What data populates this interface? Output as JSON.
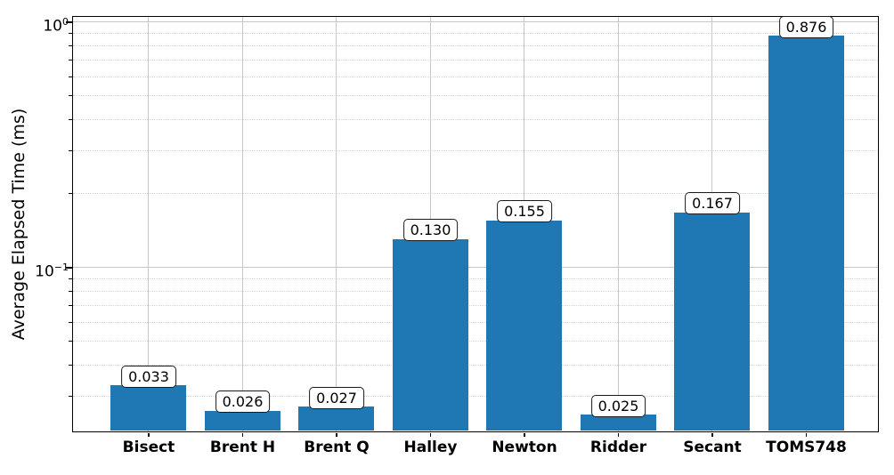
{
  "figure": {
    "background": "#ffffff"
  },
  "style": {
    "bar_color": "#1f77b4",
    "axis_color": "#000000",
    "grid_major_color": "#c7c7c7",
    "grid_minor_color": "#d6d6d6",
    "value_box_bg": "#ffffff",
    "value_box_border": "#1a1a1a",
    "text_color": "#000000"
  },
  "chart_data": {
    "type": "bar",
    "title": "",
    "xlabel": "",
    "ylabel": "Average Elapsed Time (ms)",
    "categories": [
      "Bisect",
      "Brent H",
      "Brent Q",
      "Halley",
      "Newton",
      "Ridder",
      "Secant",
      "TOMS748"
    ],
    "values": [
      0.033,
      0.026,
      0.027,
      0.13,
      0.155,
      0.025,
      0.167,
      0.876
    ],
    "value_labels": [
      "0.033",
      "0.026",
      "0.027",
      "0.130",
      "0.155",
      "0.025",
      "0.167",
      "0.876"
    ],
    "yscale": "log",
    "ylim": [
      0.0215,
      1.05
    ],
    "y_ticks": [
      {
        "value": 1.0,
        "base": "10",
        "exponent": "0"
      },
      {
        "value": 0.1,
        "base": "10",
        "exponent": "−1"
      }
    ],
    "grid": true,
    "grid_minor": true,
    "legend": null
  }
}
